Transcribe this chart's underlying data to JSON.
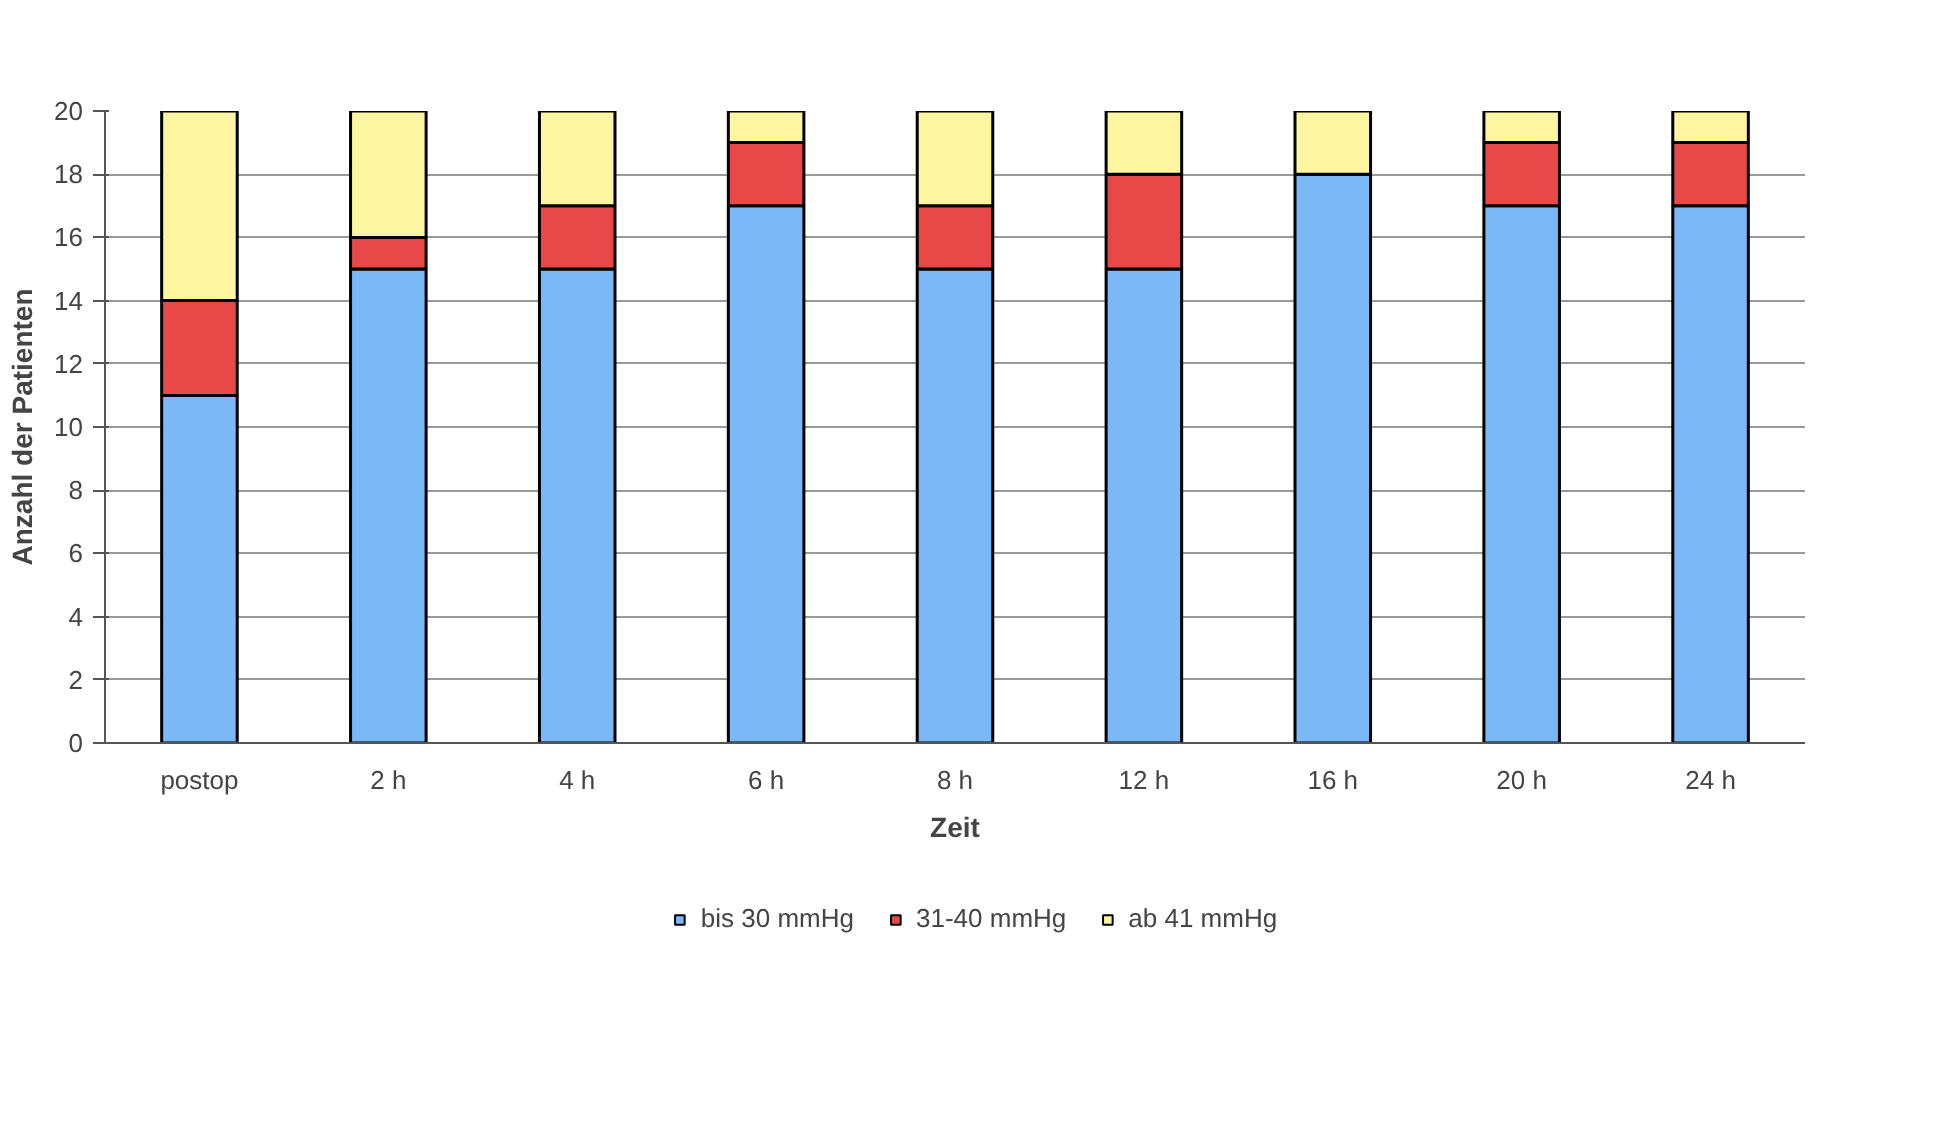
{
  "chart_data": {
    "type": "bar",
    "stacked": true,
    "xlabel": "Zeit",
    "ylabel": "Anzahl der Patienten",
    "categories": [
      "postop",
      "2 h",
      "4 h",
      "6 h",
      "8 h",
      "12 h",
      "16 h",
      "20 h",
      "24 h"
    ],
    "series": [
      {
        "name": "bis 30 mmHg",
        "color": "#7ab8f8",
        "values": [
          11,
          15,
          15,
          17,
          15,
          15,
          18,
          17,
          17
        ]
      },
      {
        "name": "31-40 mmHg",
        "color": "#e84848",
        "values": [
          3,
          1,
          2,
          2,
          2,
          3,
          0,
          2,
          2
        ]
      },
      {
        "name": "ab 41 mmHg",
        "color": "#fdf5a0",
        "values": [
          6,
          4,
          3,
          1,
          3,
          2,
          2,
          1,
          1
        ]
      }
    ],
    "ylim": [
      0,
      20
    ],
    "yticks": [
      0,
      2,
      4,
      6,
      8,
      10,
      12,
      14,
      16,
      18,
      20
    ],
    "grid": "y",
    "legend": "bottom"
  }
}
